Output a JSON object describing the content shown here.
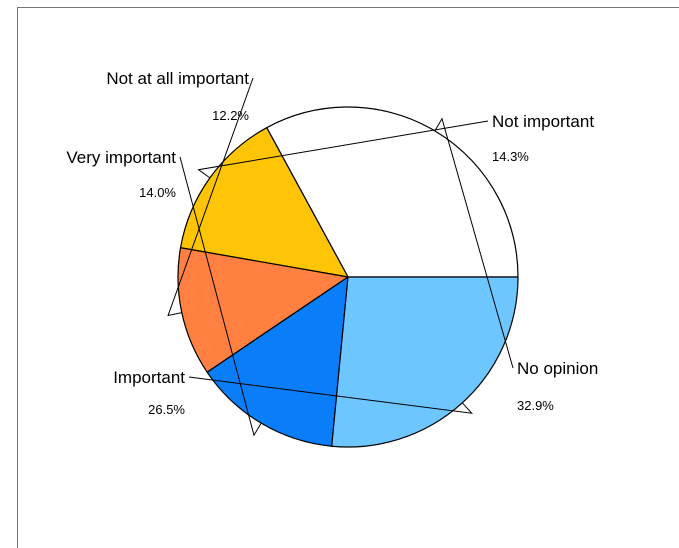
{
  "chart_data": {
    "type": "pie",
    "title": "",
    "series": [
      {
        "values": [
          32.9,
          14.3,
          12.2,
          14.0,
          26.5
        ],
        "categories": [
          "No opinion",
          "Not important",
          "Not at all important",
          "Very important",
          "Important"
        ],
        "percent_labels": [
          "32.9%",
          "14.3%",
          "12.2%",
          "14.0%",
          "26.5%"
        ]
      }
    ],
    "start": "east",
    "direction": "counterclockwise",
    "colors": [
      "#ffffff",
      "#fdc506",
      "#ff8040",
      "#0a7ef9",
      "#6ec6ff"
    ],
    "legend": "none"
  }
}
